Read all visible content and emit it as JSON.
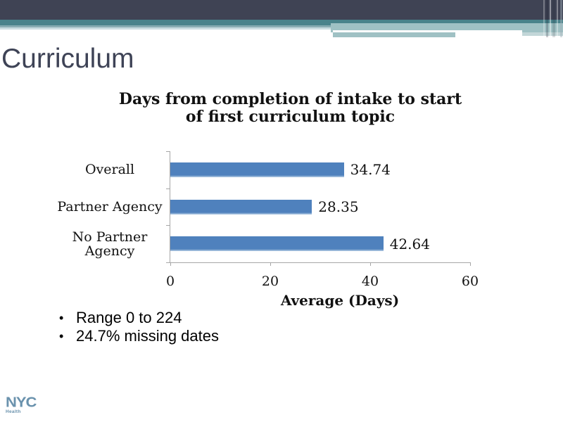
{
  "slide_title": "Curriculum",
  "chart_data": {
    "type": "bar",
    "orientation": "horizontal",
    "title": "Days from completion of intake to start of first curriculum topic",
    "title_lines": [
      "Days from completion of intake to start",
      "of first curriculum topic"
    ],
    "categories": [
      "Overall",
      "Partner Agency",
      "No Partner Agency"
    ],
    "values": [
      34.74,
      28.35,
      42.64
    ],
    "data_labels": [
      "34.74",
      "28.35",
      "42.64"
    ],
    "xlabel": "Average (Days)",
    "xlim": [
      0,
      60
    ],
    "xticks": [
      0,
      20,
      40,
      60
    ],
    "grid": false,
    "legend": false,
    "bar_color": "#4f81bd",
    "bar_edge_color": "#b9d0e6",
    "axis_color": "#a6a6a6",
    "text_color": "#111111"
  },
  "bullets": [
    "Range 0 to 224",
    "24.7% missing dates"
  ],
  "footer": {
    "logo_text": "NYC",
    "logo_subtext": "Health",
    "logo_color": "#6a92ad"
  },
  "theme": {
    "title_color": "#3e4356",
    "header_dark": "#3f4354",
    "header_teal": "#49838b",
    "header_muted_teal": "#87acb2",
    "header_pale_teal": "#c9dce0",
    "header_light_block": "#9fc1c4",
    "header_light_tail": "#c2d6d8"
  }
}
